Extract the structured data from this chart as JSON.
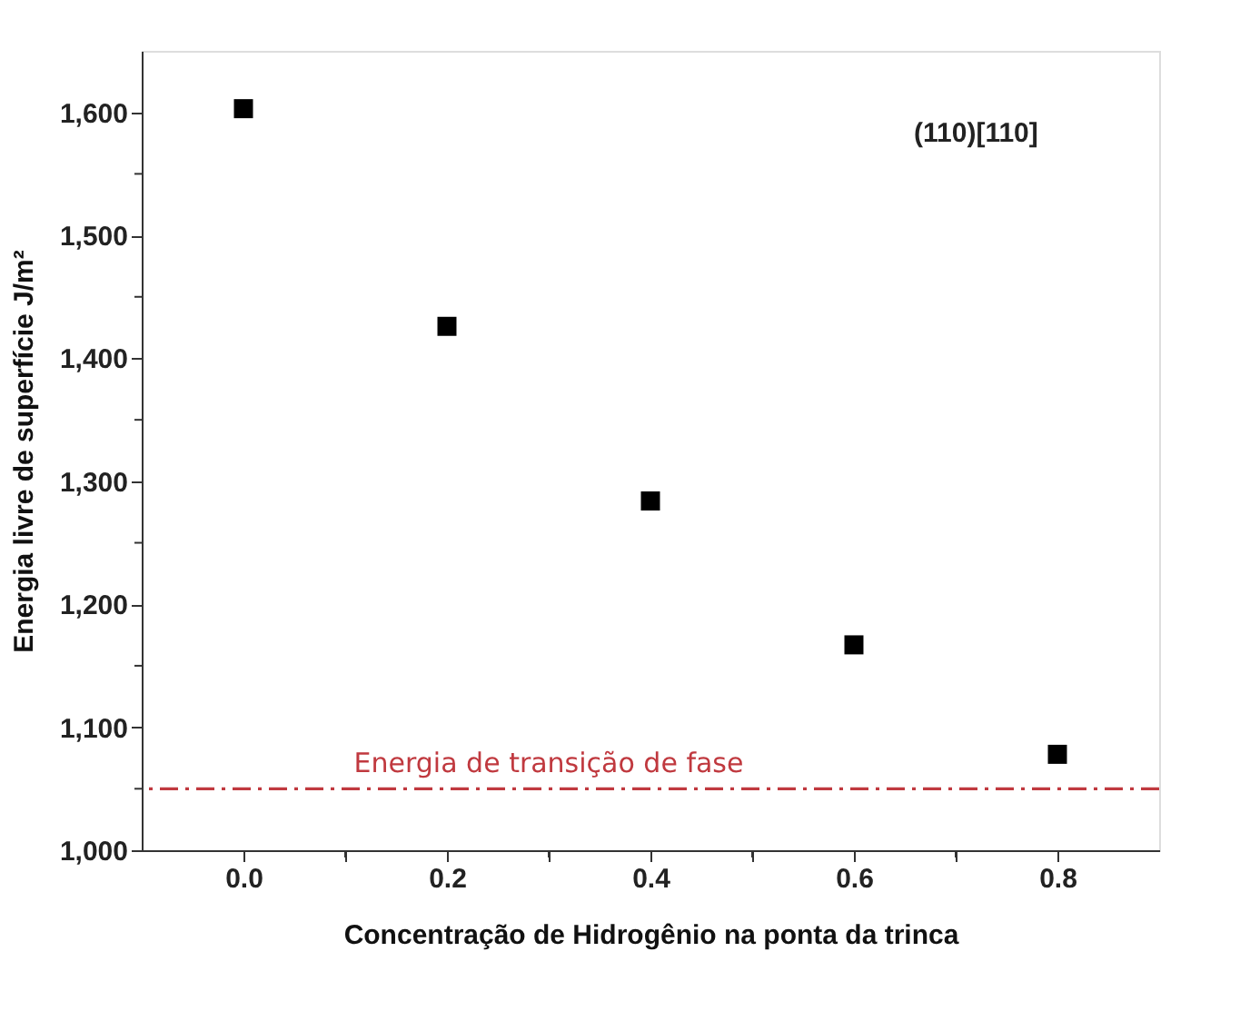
{
  "chart_data": {
    "type": "scatter",
    "xlabel": "Concentração de Hidrogênio na ponta da trinca",
    "ylabel": "Energia livre de superfície J/m²",
    "x": [
      0.0,
      0.2,
      0.4,
      0.6,
      0.8
    ],
    "series": [
      {
        "color": "#000000",
        "values": [
          1603,
          1426,
          1284,
          1167,
          1078
        ]
      }
    ],
    "marker": "square",
    "xlim": [
      -0.1,
      0.9
    ],
    "xticks": [
      {
        "value": 0.0,
        "label": "0.0"
      },
      {
        "value": 0.1,
        "label": null
      },
      {
        "value": 0.2,
        "label": "0.2"
      },
      {
        "value": 0.3,
        "label": null
      },
      {
        "value": 0.4,
        "label": "0.4"
      },
      {
        "value": 0.5,
        "label": null
      },
      {
        "value": 0.6,
        "label": "0.6"
      },
      {
        "value": 0.7,
        "label": null
      },
      {
        "value": 0.8,
        "label": "0.8"
      }
    ],
    "ylim": [
      1000,
      1650
    ],
    "yticks": [
      {
        "value": 1000,
        "label": "1,000"
      },
      {
        "value": 1050,
        "label": null
      },
      {
        "value": 1100,
        "label": "1,100"
      },
      {
        "value": 1150,
        "label": null
      },
      {
        "value": 1200,
        "label": "1,200"
      },
      {
        "value": 1250,
        "label": null
      },
      {
        "value": 1300,
        "label": "1,300"
      },
      {
        "value": 1350,
        "label": null
      },
      {
        "value": 1400,
        "label": "1,400"
      },
      {
        "value": 1450,
        "label": null
      },
      {
        "value": 1500,
        "label": "1,500"
      },
      {
        "value": 1550,
        "label": null
      },
      {
        "value": 1600,
        "label": "1,600"
      }
    ],
    "ref_lines": [
      {
        "axis": "y",
        "value": 1050,
        "label": "Energia de transição de fase",
        "color": "#c0393f",
        "line_style": "dashdot"
      }
    ],
    "annotations": [
      "(110)[110]"
    ],
    "grid": false
  }
}
